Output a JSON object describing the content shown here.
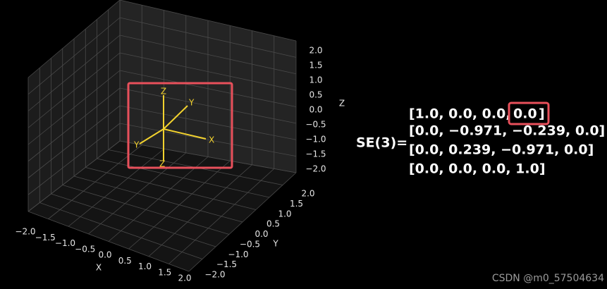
{
  "plot": {
    "x_label": "X",
    "y_label": "Y",
    "z_label": "Z",
    "x_ticks": [
      "−2.0",
      "−1.5",
      "−1.0",
      "−0.5",
      "0.0",
      "0.5",
      "1.0",
      "1.5",
      "2.0"
    ],
    "y_ticks": [
      "−2.0",
      "−1.5",
      "−1.0",
      "−0.5",
      "0.0",
      "0.5",
      "1.0",
      "1.5",
      "2.0"
    ],
    "z_ticks": [
      "2.0",
      "1.5",
      "1.0",
      "0.5",
      "0.0",
      "−0.5",
      "−1.0",
      "−1.5",
      "−2.0"
    ],
    "frame_labels": {
      "z": "Z",
      "y": "Y",
      "x": "X",
      "neg_y": "Y",
      "neg_z": "Z"
    }
  },
  "matrix": {
    "label": "SE(3)=",
    "row_0_prefix": "[1.0, 0.0, 0.0,",
    "row_0_highlight": "0.0",
    "row_0_suffix": "]",
    "rows": [
      "[0.0, −0.971, −0.239, 0.0]",
      "[0.0, 0.239, −0.971, 0.0]",
      "[0.0, 0.0, 0.0, 1.0]"
    ]
  },
  "watermark": "CSDN @m0_57504634"
}
